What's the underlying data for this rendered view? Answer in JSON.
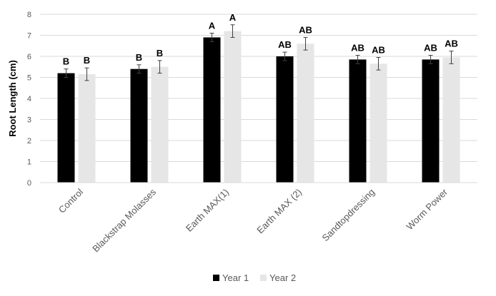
{
  "chart_data": {
    "type": "bar",
    "title": "",
    "xlabel": "",
    "ylabel": "Root Length (cm)",
    "ylim": [
      0,
      8
    ],
    "yticks": [
      0,
      1,
      2,
      3,
      4,
      5,
      6,
      7,
      8
    ],
    "grid": true,
    "legend_position": "bottom",
    "categories": [
      "Control",
      "Blackstrap Molasses",
      "Earth MAX(1)",
      "Earth MAX (2)",
      "Sandtopdressing",
      "Worm Power"
    ],
    "series": [
      {
        "name": "Year 1",
        "color": "#000000",
        "values": [
          5.2,
          5.4,
          6.9,
          6.0,
          5.85,
          5.85
        ],
        "errors": [
          0.2,
          0.2,
          0.2,
          0.2,
          0.2,
          0.2
        ],
        "labels": [
          "B",
          "B",
          "A",
          "AB",
          "AB",
          "AB"
        ]
      },
      {
        "name": "Year 2",
        "color": "#e7e6e6",
        "values": [
          5.15,
          5.5,
          7.2,
          6.6,
          5.65,
          5.95
        ],
        "errors": [
          0.3,
          0.3,
          0.3,
          0.3,
          0.3,
          0.3
        ],
        "labels": [
          "B",
          "B",
          "A",
          "AB",
          "AB",
          "AB"
        ]
      }
    ]
  }
}
